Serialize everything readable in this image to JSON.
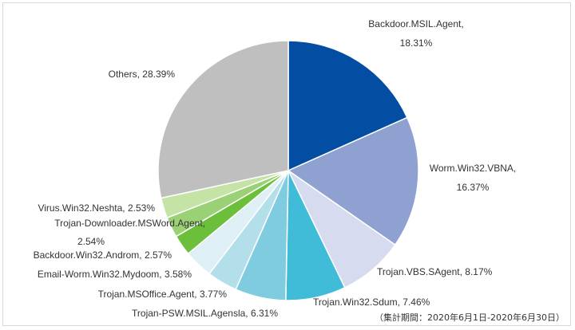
{
  "chart_data": {
    "type": "pie",
    "title": "",
    "legend": "none",
    "slices": [
      {
        "name": "Backdoor.MSIL.Agent",
        "value": 18.31,
        "label": "18.31%",
        "color": "#034ea2"
      },
      {
        "name": "Worm.Win32.VBNA",
        "value": 16.37,
        "label": "16.37%",
        "color": "#8ea1d1"
      },
      {
        "name": "Trojan.VBS.SAgent",
        "value": 8.17,
        "label": "8.17%",
        "color": "#d6dbef"
      },
      {
        "name": "Trojan.Win32.Sdum",
        "value": 7.46,
        "label": "7.46%",
        "color": "#40bcd8"
      },
      {
        "name": "Trojan-PSW.MSIL.Agensla",
        "value": 6.31,
        "label": "6.31%",
        "color": "#7fcbe0"
      },
      {
        "name": "Trojan.MSOffice.Agent",
        "value": 3.77,
        "label": "3.77%",
        "color": "#b3dfea"
      },
      {
        "name": "Email-Worm.Win32.Mydoom",
        "value": 3.58,
        "label": "3.58%",
        "color": "#deeff6"
      },
      {
        "name": "Backdoor.Win32.Androm",
        "value": 2.57,
        "label": "2.57%",
        "color": "#6bbf3b"
      },
      {
        "name": "Trojan-Downloader.MSWord.Agent",
        "value": 2.54,
        "label": "2.54%",
        "color": "#9bd175"
      },
      {
        "name": "Virus.Win32.Neshta",
        "value": 2.53,
        "label": "2.53%",
        "color": "#c5e3a5"
      },
      {
        "name": "Others",
        "value": 28.39,
        "label": "28.39%",
        "color": "#bfbfbf"
      }
    ]
  },
  "footnote": "（集計期間：2020年6月1日-2020年6月30日）"
}
